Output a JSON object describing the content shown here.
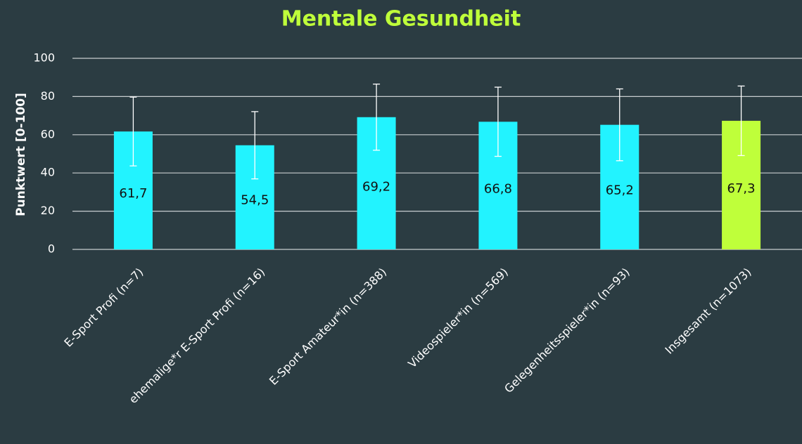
{
  "chart_data": {
    "type": "bar",
    "title": "Mentale Gesundheit",
    "y_label": "Punktwert [0-100]",
    "categories": [
      "E-Sport Profi (n=7)",
      "ehemalige*r E-Sport Profi (n=16)",
      "E-Sport Amateur*in (n=388)",
      "Videospieler*in (n=569)",
      "Gelegenheitsspieler*in (n=93)",
      "Insgesamt (n=1073)"
    ],
    "values": [
      61.7,
      54.5,
      69.2,
      66.8,
      65.2,
      67.3
    ],
    "value_labels": [
      "61,7",
      "54,5",
      "69,2",
      "66,8",
      "65,2",
      "67,3"
    ],
    "errors": [
      18,
      17.6,
      17.3,
      18.1,
      18.8,
      18.2
    ],
    "colors": [
      "#22f3ff",
      "#22f3ff",
      "#22f3ff",
      "#22f3ff",
      "#22f3ff",
      "#bfff3a"
    ],
    "ylim": [
      0,
      100
    ],
    "yticks": [
      0,
      20,
      40,
      60,
      80,
      100
    ],
    "grid": true
  }
}
